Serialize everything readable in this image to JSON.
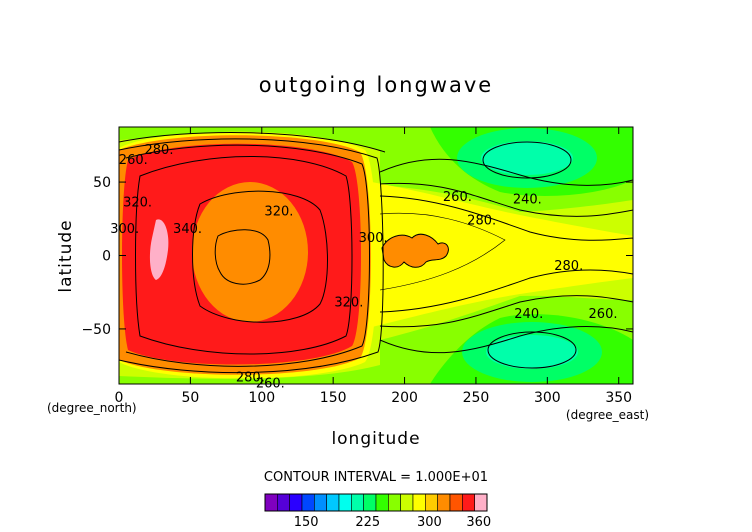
{
  "chart_data": {
    "type": "heatmap",
    "subtype": "filled contour",
    "title": "outgoing longwave",
    "xlabel": "longitude",
    "ylabel": "latitude",
    "x_unit": "(degree_east)",
    "y_unit": "(degree_north)",
    "xlim": [
      0,
      360
    ],
    "ylim": [
      -87.5,
      87.5
    ],
    "x_ticks": [
      0,
      50,
      100,
      150,
      200,
      250,
      300,
      350
    ],
    "y_ticks": [
      -50,
      0,
      50
    ],
    "x_tick_labels": [
      "0",
      "50",
      "100",
      "150",
      "200",
      "250",
      "300",
      "350"
    ],
    "y_tick_labels": [
      "−50",
      "0",
      "50"
    ],
    "contour_interval_text": "CONTOUR INTERVAL = 1.000E+01",
    "contour_labels": [
      {
        "text": "260.",
        "lon": 10,
        "lat": 65
      },
      {
        "text": "280.",
        "lon": 28,
        "lat": 72
      },
      {
        "text": "300.",
        "lon": 4,
        "lat": 18
      },
      {
        "text": "320.",
        "lon": 13,
        "lat": 36
      },
      {
        "text": "340.",
        "lon": 48,
        "lat": 18
      },
      {
        "text": "320.",
        "lon": 112,
        "lat": 30
      },
      {
        "text": "300.",
        "lon": 178,
        "lat": 12
      },
      {
        "text": "320.",
        "lon": 161,
        "lat": -32
      },
      {
        "text": "260.",
        "lon": 237,
        "lat": 40
      },
      {
        "text": "240.",
        "lon": 286,
        "lat": 38
      },
      {
        "text": "280.",
        "lon": 254,
        "lat": 24
      },
      {
        "text": "280.",
        "lon": 315,
        "lat": -7
      },
      {
        "text": "240.",
        "lon": 287,
        "lat": -40
      },
      {
        "text": "260.",
        "lon": 339,
        "lat": -40
      },
      {
        "text": "280.",
        "lon": 92,
        "lat": -83
      },
      {
        "text": "260.",
        "lon": 106,
        "lat": -87
      }
    ],
    "colorbar": {
      "levels": [
        100,
        115,
        130,
        145,
        160,
        175,
        190,
        205,
        220,
        235,
        250,
        265,
        280,
        295,
        310,
        325,
        340,
        355,
        370
      ],
      "tick_values": [
        150,
        225,
        300,
        360
      ],
      "tick_labels": [
        "150",
        "225",
        "300",
        "360"
      ],
      "colors": [
        "#7f00bf",
        "#5500d8",
        "#2a00ff",
        "#0047ff",
        "#008fff",
        "#00c8ff",
        "#00ffee",
        "#00ffaa",
        "#00ff66",
        "#33ff00",
        "#88ff00",
        "#ccff00",
        "#ffff00",
        "#ffcc00",
        "#ff8c00",
        "#ff5500",
        "#ff1a1a",
        "#ffb0c8"
      ]
    }
  },
  "colors": {
    "band_220": "#00ff66",
    "band_235": "#33ff00",
    "band_250": "#88ff00",
    "band_265": "#ccff00",
    "band_280": "#ffff00",
    "band_295": "#ffcc00",
    "band_310": "#ff8c00",
    "band_325": "#ff5500",
    "band_340": "#ff1a1a",
    "band_355": "#ffb0c8",
    "contour_line": "#000000"
  }
}
